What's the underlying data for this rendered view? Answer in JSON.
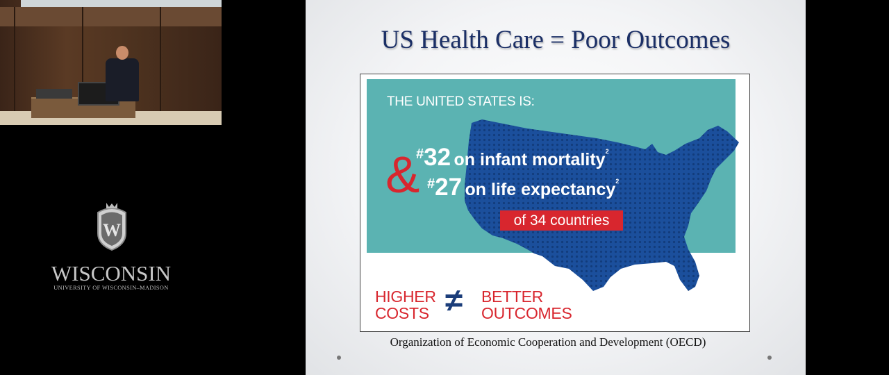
{
  "video": {},
  "logo": {
    "word": "WISCONSIN",
    "subtitle": "UNIVERSITY OF WISCONSIN–MADISON",
    "crest_letter": "W"
  },
  "slide": {
    "title": "US Health Care = Poor Outcomes",
    "infographic": {
      "intro": "THE UNITED STATES IS:",
      "stats": [
        {
          "hash": "#",
          "rank": "32",
          "label": "on infant mortality",
          "sup": "2"
        },
        {
          "hash": "#",
          "rank": "27",
          "label": "on life expectancy",
          "sup": "2"
        }
      ],
      "ampersand": "&",
      "countries": "of 34 countries",
      "higher": [
        "HIGHER",
        "COSTS"
      ],
      "neq": "≠",
      "better": [
        "BETTER",
        "OUTCOMES"
      ]
    },
    "source": "Organization of Economic Cooperation and Development (OECD)"
  },
  "colors": {
    "title": "#1b2f66",
    "teal": "#5bb3b2",
    "map": "#1b4f9c",
    "red": "#d8262e"
  }
}
